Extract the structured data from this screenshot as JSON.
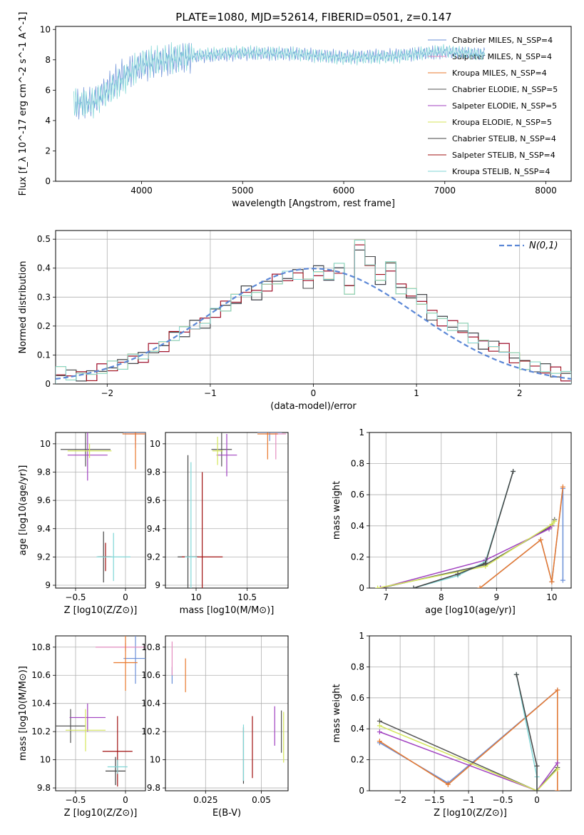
{
  "figure_title": "PLATE=1080, MJD=52614, FIBERID=0501, z=0.147",
  "legend_labels": [
    "Chabrier MILES, N_SSP=4",
    "Salpeter MILES, N_SSP=4",
    "Kroupa MILES, N_SSP=4",
    "Chabrier ELODIE, N_SSP=5",
    "Salpeter ELODIE, N_SSP=5",
    "Kroupa ELODIE, N_SSP=5",
    "Chabrier STELIB, N_SSP=4",
    "Salpeter STELIB, N_SSP=4",
    "Kroupa STELIB, N_SSP=4"
  ],
  "series_colors": [
    "#6a8fd8",
    "#e58ec0",
    "#e8782c",
    "#555555",
    "#a040c0",
    "#d4e65a",
    "#444444",
    "#a01010",
    "#7fd6d6"
  ],
  "chart_data": [
    {
      "id": "spectrum",
      "type": "line",
      "xlabel": "wavelength [Angstrom, rest frame]",
      "ylabel": "Flux [f_λ 10^-17 erg cm^-2 s^-1 A^-1]",
      "xlim": [
        3150,
        8250
      ],
      "ylim": [
        0,
        10.2
      ],
      "xticks": [
        4000,
        5000,
        6000,
        7000,
        8000
      ],
      "yticks": [
        0,
        2,
        4,
        6,
        8,
        10
      ],
      "grid": false,
      "legend": "top-right",
      "series": [
        {
          "name": "Chabrier MILES, N_SSP=4",
          "x": [
            3350,
            3530,
            3800,
            4000,
            4500,
            5000,
            5500,
            6000,
            6500,
            7000,
            7400
          ],
          "y": [
            5.0,
            5.3,
            7.0,
            7.6,
            8.2,
            8.4,
            8.4,
            8.2,
            8.3,
            8.5,
            8.4
          ]
        },
        {
          "name": "Kroupa STELIB, N_SSP=4",
          "x": [
            3330,
            3500,
            3800,
            4000,
            4500,
            5000,
            5500,
            6000,
            6500,
            7000,
            7400
          ],
          "y": [
            5.2,
            5.1,
            6.5,
            7.8,
            8.3,
            8.5,
            8.4,
            8.1,
            8.2,
            8.6,
            8.3
          ]
        }
      ]
    },
    {
      "id": "residuals",
      "type": "histogram",
      "xlabel": "(data-model)/error",
      "ylabel": "Normed distribution",
      "xlim": [
        -2.5,
        2.5
      ],
      "ylim": [
        0,
        0.53
      ],
      "xticks": [
        -2,
        -1,
        0,
        1,
        2
      ],
      "yticks": [
        0.0,
        0.1,
        0.2,
        0.3,
        0.4,
        0.5
      ],
      "grid": true,
      "legend": "top-right",
      "reference_label": "N(0,1)",
      "bins": [
        -2.5,
        -2.4,
        -2.3,
        -2.2,
        -2.1,
        -2.0,
        -1.9,
        -1.8,
        -1.7,
        -1.6,
        -1.5,
        -1.4,
        -1.3,
        -1.2,
        -1.1,
        -1.0,
        -0.9,
        -0.8,
        -0.7,
        -0.6,
        -0.5,
        -0.4,
        -0.3,
        -0.2,
        -0.1,
        0.0,
        0.1,
        0.2,
        0.3,
        0.4,
        0.5,
        0.6,
        0.7,
        0.8,
        0.9,
        1.0,
        1.1,
        1.2,
        1.3,
        1.4,
        1.5,
        1.6,
        1.7,
        1.8,
        1.9,
        2.0,
        2.1,
        2.2,
        2.3,
        2.4,
        2.5
      ],
      "values": [
        0.04,
        0.03,
        0.03,
        0.03,
        0.05,
        0.06,
        0.07,
        0.09,
        0.09,
        0.12,
        0.13,
        0.17,
        0.18,
        0.2,
        0.21,
        0.25,
        0.27,
        0.29,
        0.32,
        0.31,
        0.34,
        0.36,
        0.37,
        0.38,
        0.35,
        0.39,
        0.37,
        0.4,
        0.33,
        0.48,
        0.42,
        0.36,
        0.41,
        0.33,
        0.31,
        0.29,
        0.24,
        0.22,
        0.2,
        0.19,
        0.16,
        0.14,
        0.13,
        0.12,
        0.09,
        0.07,
        0.06,
        0.05,
        0.04,
        0.03
      ]
    },
    {
      "id": "age-vs-z",
      "type": "scatter",
      "xlabel": "Z [log10(Z/Z⊙)]",
      "ylabel": "age [log10(age/yr)]",
      "xlim": [
        -0.7,
        0.2
      ],
      "ylim": [
        8.98,
        10.08
      ],
      "xticks": [
        -0.5,
        0.0
      ],
      "yticks": [
        9.0,
        9.2,
        9.4,
        9.6,
        9.8,
        10.0
      ],
      "points": [
        {
          "x": 0.1,
          "y": 10.08,
          "dx": 0.12,
          "dy": 0.06,
          "series": 0
        },
        {
          "x": 0.1,
          "y": 10.07,
          "dx": 0.1,
          "dy": 0.1,
          "series": 1
        },
        {
          "x": 0.1,
          "y": 10.07,
          "dx": 0.13,
          "dy": 0.25,
          "series": 2
        },
        {
          "x": -0.4,
          "y": 9.96,
          "dx": 0.25,
          "dy": 0.12,
          "series": 3
        },
        {
          "x": -0.38,
          "y": 9.92,
          "dx": 0.2,
          "dy": 0.18,
          "series": 4
        },
        {
          "x": -0.36,
          "y": 9.95,
          "dx": 0.22,
          "dy": 0.05,
          "series": 5
        },
        {
          "x": -0.22,
          "y": 9.2,
          "dx": 0.06,
          "dy": 0.18,
          "series": 6
        },
        {
          "x": -0.2,
          "y": 9.2,
          "dx": 0.06,
          "dy": 0.1,
          "series": 7
        },
        {
          "x": -0.12,
          "y": 9.2,
          "dx": 0.17,
          "dy": 0.17,
          "series": 8
        }
      ]
    },
    {
      "id": "age-vs-mass",
      "type": "scatter",
      "xlabel": "mass [log10(M/M⊙)]",
      "ylabel": "",
      "xlim": [
        9.7,
        10.9
      ],
      "ylim": [
        8.98,
        10.08
      ],
      "xticks": [
        10.0,
        10.5
      ],
      "yticks": [
        9.0,
        9.2,
        9.4,
        9.6,
        9.8,
        10.0
      ],
      "points": [
        {
          "x": 10.72,
          "y": 10.08,
          "dx": 0.12,
          "dy": 0.06,
          "series": 0
        },
        {
          "x": 10.78,
          "y": 10.07,
          "dx": 0.1,
          "dy": 0.18,
          "series": 1
        },
        {
          "x": 10.7,
          "y": 10.07,
          "dx": 0.1,
          "dy": 0.18,
          "series": 2
        },
        {
          "x": 10.25,
          "y": 9.96,
          "dx": 0.1,
          "dy": 0.12,
          "series": 3
        },
        {
          "x": 10.3,
          "y": 9.92,
          "dx": 0.1,
          "dy": 0.15,
          "series": 4
        },
        {
          "x": 10.21,
          "y": 9.95,
          "dx": 0.05,
          "dy": 0.1,
          "series": 5
        },
        {
          "x": 9.92,
          "y": 9.2,
          "dx": 0.1,
          "dy": 0.72,
          "series": 6
        },
        {
          "x": 10.06,
          "y": 9.2,
          "dx": 0.2,
          "dy": 0.6,
          "series": 7
        },
        {
          "x": 9.95,
          "y": 9.2,
          "dx": 0.06,
          "dy": 0.67,
          "series": 8
        }
      ]
    },
    {
      "id": "mass-weight-vs-age",
      "type": "line",
      "xlabel": "age [log10(age/yr)]",
      "ylabel": "mass weight",
      "xlim": [
        6.7,
        10.35
      ],
      "ylim": [
        0,
        1.0
      ],
      "xticks": [
        7,
        8,
        9,
        10
      ],
      "yticks": [
        0.0,
        0.2,
        0.4,
        0.6,
        0.8,
        1.0
      ],
      "grid": true,
      "series": [
        {
          "name": "Chabrier MILES, N_SSP=4",
          "x": [
            8.7,
            9.8,
            10.0,
            10.2,
            10.2
          ],
          "y": [
            0.0,
            0.31,
            0.04,
            0.64,
            0.05
          ]
        },
        {
          "name": "Kroupa MILES, N_SSP=4",
          "x": [
            8.7,
            9.8,
            10.0,
            10.2
          ],
          "y": [
            0.0,
            0.31,
            0.04,
            0.65
          ]
        },
        {
          "name": "Chabrier ELODIE, N_SSP=5",
          "x": [
            6.9,
            8.8,
            10.0,
            10.05
          ],
          "y": [
            0.0,
            0.15,
            0.4,
            0.44
          ]
        },
        {
          "name": "Salpeter ELODIE, N_SSP=5",
          "x": [
            6.9,
            8.8,
            9.95,
            10.0
          ],
          "y": [
            0.0,
            0.18,
            0.38,
            0.4
          ]
        },
        {
          "name": "Kroupa ELODIE, N_SSP=5",
          "x": [
            6.85,
            8.8,
            10.0,
            10.05
          ],
          "y": [
            0.0,
            0.14,
            0.41,
            0.43
          ]
        },
        {
          "name": "Kroupa STELIB, N_SSP=4",
          "x": [
            7.5,
            8.3,
            8.8,
            9.3
          ],
          "y": [
            0.0,
            0.08,
            0.17,
            0.75
          ]
        },
        {
          "name": "Chabrier STELIB, N_SSP=4",
          "x": [
            7.5,
            8.3,
            8.8,
            9.3
          ],
          "y": [
            0.0,
            0.09,
            0.16,
            0.75
          ]
        }
      ]
    },
    {
      "id": "mass-vs-z",
      "type": "scatter",
      "xlabel": "Z [log10(Z/Z⊙)]",
      "ylabel": "mass [log10(M/M⊙)]",
      "xlim": [
        -0.7,
        0.2
      ],
      "ylim": [
        9.78,
        10.88
      ],
      "xticks": [
        -0.5,
        0.0
      ],
      "yticks": [
        9.8,
        10.0,
        10.2,
        10.4,
        10.6,
        10.8
      ],
      "points": [
        {
          "x": 0.1,
          "y": 10.72,
          "dx": 0.12,
          "dy": 0.18,
          "series": 0
        },
        {
          "x": 0.0,
          "y": 10.8,
          "dx": 0.3,
          "dy": 0.03,
          "series": 1
        },
        {
          "x": 0.0,
          "y": 10.69,
          "dx": 0.12,
          "dy": 0.2,
          "series": 2
        },
        {
          "x": -0.55,
          "y": 10.24,
          "dx": 0.15,
          "dy": 0.12,
          "series": 3
        },
        {
          "x": -0.38,
          "y": 10.3,
          "dx": 0.18,
          "dy": 0.1,
          "series": 4
        },
        {
          "x": -0.4,
          "y": 10.21,
          "dx": 0.2,
          "dy": 0.15,
          "series": 5
        },
        {
          "x": -0.1,
          "y": 9.92,
          "dx": 0.1,
          "dy": 0.1,
          "series": 6
        },
        {
          "x": -0.08,
          "y": 10.06,
          "dx": 0.15,
          "dy": 0.25,
          "series": 7
        },
        {
          "x": -0.08,
          "y": 9.95,
          "dx": 0.1,
          "dy": 0.05,
          "series": 8
        }
      ]
    },
    {
      "id": "mass-vs-ebv",
      "type": "scatter",
      "xlabel": "E(B-V)",
      "ylabel": "",
      "xlim": [
        0.007,
        0.062
      ],
      "ylim": [
        9.78,
        10.88
      ],
      "xticks": [
        0.025,
        0.05
      ],
      "yticks": [
        9.8,
        10.0,
        10.2,
        10.4,
        10.6,
        10.8
      ],
      "points": [
        {
          "x": 0.01,
          "y": 10.6,
          "dy": 0.06,
          "series": 0
        },
        {
          "x": 0.01,
          "y": 10.72,
          "dy": 0.12,
          "series": 1
        },
        {
          "x": 0.016,
          "y": 10.6,
          "dy": 0.12,
          "series": 2
        },
        {
          "x": 0.059,
          "y": 10.2,
          "dy": 0.15,
          "series": 3
        },
        {
          "x": 0.056,
          "y": 10.24,
          "dy": 0.14,
          "series": 4
        },
        {
          "x": 0.06,
          "y": 10.16,
          "dy": 0.18,
          "series": 5
        },
        {
          "x": 0.042,
          "y": 10.03,
          "dy": 0.2,
          "series": 6
        },
        {
          "x": 0.046,
          "y": 10.09,
          "dy": 0.22,
          "series": 7
        },
        {
          "x": 0.042,
          "y": 10.05,
          "dy": 0.2,
          "series": 8
        }
      ]
    },
    {
      "id": "mass-weight-vs-z",
      "type": "line",
      "xlabel": "Z [log10(Z/Z⊙)]",
      "ylabel": "mass weight",
      "xlim": [
        -2.45,
        0.5
      ],
      "ylim": [
        0,
        1.0
      ],
      "xticks": [
        -2.0,
        -1.5,
        -1.0,
        -0.5,
        0.0
      ],
      "yticks": [
        0.0,
        0.2,
        0.4,
        0.6,
        0.8,
        1.0
      ],
      "grid": true,
      "series": [
        {
          "name": "Chabrier MILES, N_SSP=4",
          "x": [
            -2.3,
            -1.3,
            0.3,
            0.3
          ],
          "y": [
            0.31,
            0.05,
            0.65,
            0.0
          ]
        },
        {
          "name": "Kroupa MILES, N_SSP=4",
          "x": [
            -2.3,
            -1.3,
            0.3,
            0.3
          ],
          "y": [
            0.32,
            0.04,
            0.65,
            0.0
          ]
        },
        {
          "name": "Chabrier ELODIE, N_SSP=5",
          "x": [
            -2.3,
            0.0,
            0.3
          ],
          "y": [
            0.45,
            0.0,
            0.15
          ]
        },
        {
          "name": "Salpeter ELODIE, N_SSP=5",
          "x": [
            -2.3,
            0.0,
            0.3
          ],
          "y": [
            0.38,
            0.0,
            0.18
          ]
        },
        {
          "name": "Kroupa ELODIE, N_SSP=5",
          "x": [
            -2.3,
            0.0,
            0.3
          ],
          "y": [
            0.42,
            0.0,
            0.14
          ]
        },
        {
          "name": "Kroupa STELIB, N_SSP=4",
          "x": [
            -0.3,
            0.0,
            0.0
          ],
          "y": [
            0.75,
            0.09,
            0.0
          ]
        },
        {
          "name": "Chabrier STELIB, N_SSP=4",
          "x": [
            -0.3,
            0.0,
            0.0
          ],
          "y": [
            0.75,
            0.16,
            0.0
          ]
        }
      ]
    }
  ]
}
